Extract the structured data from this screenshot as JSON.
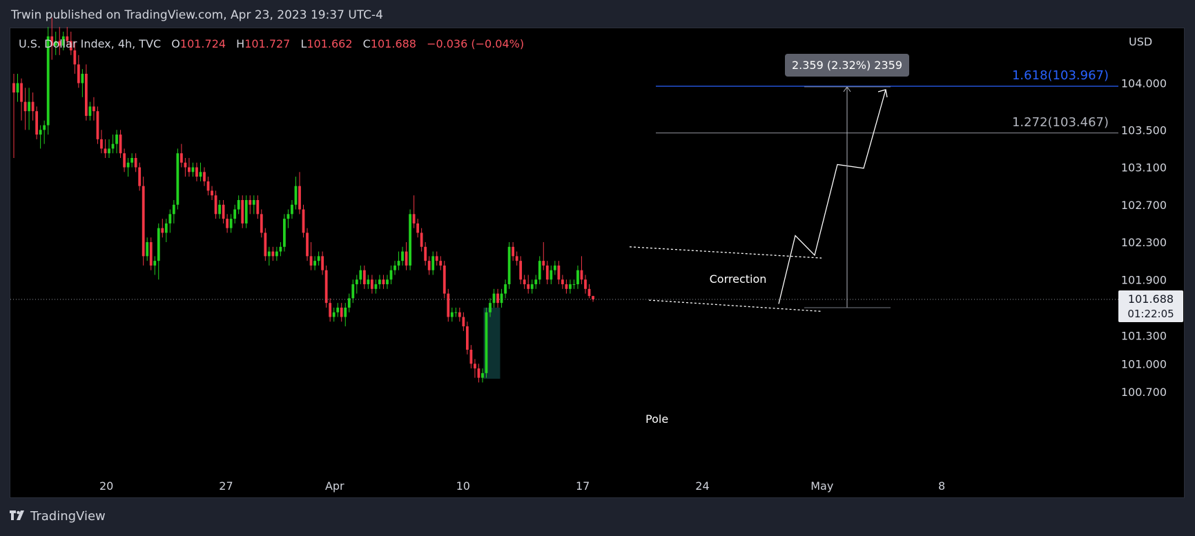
{
  "header": {
    "text": "Trwin published on TradingView.com, Apr 23, 2023 19:37 UTC-4"
  },
  "footer": {
    "logo_icon": "tradingview-logo-icon",
    "brand": "TradingView"
  },
  "legend": {
    "symbol": "U.S. Dollar Index, 4h, TVC",
    "open_label": "O",
    "open": "101.724",
    "high_label": "H",
    "high": "101.727",
    "low_label": "L",
    "low": "101.662",
    "close_label": "C",
    "close": "101.688",
    "change": "−0.036 (−0.04%)"
  },
  "price_axis": {
    "currency": "USD"
  },
  "current_price": {
    "value": "101.688",
    "countdown": "01:22:05"
  },
  "colors": {
    "up": "#22d11f",
    "down": "#f23645",
    "background": "#000000",
    "fib_618": "#2962ff",
    "fib_1272": "#9598a1"
  },
  "annotations": {
    "measure_label": "2.359 (2.32%) 2359",
    "fib_618_label": "1.618(103.967)",
    "fib_1272_label": "1.272(103.467)",
    "correction_label": "Correction",
    "pole_label": "Pole"
  },
  "chart_data": {
    "type": "candlestick",
    "title": "U.S. Dollar Index, 4h, TVC",
    "ylim": [
      100.62,
      104.55
    ],
    "y_ticks": [
      104.0,
      103.5,
      103.1,
      102.7,
      102.3,
      101.9,
      101.3,
      101.0,
      100.7
    ],
    "y_tick_labels": [
      "104.000",
      "103.500",
      "103.100",
      "102.700",
      "102.300",
      "101.900",
      "101.300",
      "101.000",
      "100.700"
    ],
    "x_ticks": [
      {
        "label": "20",
        "bar": 24.3
      },
      {
        "label": "27",
        "bar": 55.7
      },
      {
        "label": "Apr",
        "bar": 84.2
      },
      {
        "label": "10",
        "bar": 117.9
      },
      {
        "label": "17",
        "bar": 149.3
      },
      {
        "label": "24",
        "bar": 180.7
      },
      {
        "label": "May",
        "bar": 212.1
      },
      {
        "label": "8",
        "bar": 243.5
      }
    ],
    "grid": false,
    "candles": [
      [
        104.0,
        104.1,
        103.2,
        103.9
      ],
      [
        103.9,
        104.1,
        103.8,
        104.0
      ],
      [
        104.0,
        104.05,
        103.6,
        103.8
      ],
      [
        103.8,
        103.95,
        103.5,
        103.7
      ],
      [
        103.7,
        103.95,
        103.5,
        103.8
      ],
      [
        103.8,
        103.9,
        103.6,
        103.7
      ],
      [
        103.7,
        103.75,
        103.4,
        103.45
      ],
      [
        103.45,
        103.55,
        103.3,
        103.5
      ],
      [
        103.5,
        103.6,
        103.35,
        103.55
      ],
      [
        103.55,
        104.6,
        103.45,
        104.5
      ],
      [
        104.5,
        104.7,
        104.25,
        104.4
      ],
      [
        104.4,
        104.55,
        104.3,
        104.45
      ],
      [
        104.45,
        104.6,
        104.3,
        104.4
      ],
      [
        104.4,
        104.55,
        104.35,
        104.5
      ],
      [
        104.5,
        104.6,
        104.4,
        104.45
      ],
      [
        104.45,
        104.55,
        104.3,
        104.35
      ],
      [
        104.35,
        104.45,
        104.1,
        104.2
      ],
      [
        104.2,
        104.3,
        103.95,
        104.0
      ],
      [
        104.0,
        104.15,
        103.85,
        104.1
      ],
      [
        104.1,
        104.2,
        103.6,
        103.65
      ],
      [
        103.65,
        103.8,
        103.6,
        103.75
      ],
      [
        103.75,
        103.85,
        103.6,
        103.7
      ],
      [
        103.7,
        103.75,
        103.35,
        103.4
      ],
      [
        103.4,
        103.5,
        103.25,
        103.3
      ],
      [
        103.3,
        103.4,
        103.2,
        103.25
      ],
      [
        103.25,
        103.4,
        103.2,
        103.3
      ],
      [
        103.3,
        103.45,
        103.25,
        103.35
      ],
      [
        103.35,
        103.5,
        103.25,
        103.45
      ],
      [
        103.45,
        103.5,
        103.2,
        103.25
      ],
      [
        103.25,
        103.3,
        103.05,
        103.1
      ],
      [
        103.1,
        103.2,
        103.0,
        103.15
      ],
      [
        103.15,
        103.25,
        103.1,
        103.2
      ],
      [
        103.2,
        103.25,
        103.05,
        103.1
      ],
      [
        103.1,
        103.15,
        102.85,
        102.9
      ],
      [
        102.9,
        103.0,
        102.05,
        102.15
      ],
      [
        102.15,
        102.35,
        102.1,
        102.3
      ],
      [
        102.3,
        102.35,
        102.0,
        102.05
      ],
      [
        102.05,
        102.15,
        101.95,
        102.1
      ],
      [
        102.1,
        102.5,
        101.9,
        102.45
      ],
      [
        102.45,
        102.55,
        102.35,
        102.4
      ],
      [
        102.4,
        102.55,
        102.3,
        102.5
      ],
      [
        102.5,
        102.65,
        102.4,
        102.6
      ],
      [
        102.6,
        102.75,
        102.5,
        102.7
      ],
      [
        102.7,
        103.3,
        102.65,
        103.25
      ],
      [
        103.25,
        103.35,
        103.1,
        103.15
      ],
      [
        103.15,
        103.2,
        103.0,
        103.1
      ],
      [
        103.1,
        103.2,
        103.0,
        103.05
      ],
      [
        103.05,
        103.15,
        103.0,
        103.1
      ],
      [
        103.1,
        103.15,
        102.95,
        103.0
      ],
      [
        103.0,
        103.15,
        102.95,
        103.05
      ],
      [
        103.05,
        103.1,
        102.9,
        102.95
      ],
      [
        102.95,
        103.0,
        102.8,
        102.85
      ],
      [
        102.85,
        102.9,
        102.75,
        102.8
      ],
      [
        102.8,
        102.85,
        102.55,
        102.6
      ],
      [
        102.6,
        102.75,
        102.55,
        102.7
      ],
      [
        102.7,
        102.75,
        102.5,
        102.55
      ],
      [
        102.55,
        102.6,
        102.4,
        102.45
      ],
      [
        102.45,
        102.6,
        102.4,
        102.55
      ],
      [
        102.55,
        102.7,
        102.5,
        102.65
      ],
      [
        102.65,
        102.8,
        102.6,
        102.75
      ],
      [
        102.75,
        102.8,
        102.45,
        102.5
      ],
      [
        102.5,
        102.8,
        102.45,
        102.75
      ],
      [
        102.75,
        102.8,
        102.6,
        102.7
      ],
      [
        102.7,
        102.8,
        102.6,
        102.75
      ],
      [
        102.75,
        102.8,
        102.55,
        102.6
      ],
      [
        102.6,
        102.65,
        102.35,
        102.4
      ],
      [
        102.4,
        102.45,
        102.1,
        102.15
      ],
      [
        102.15,
        102.25,
        102.05,
        102.2
      ],
      [
        102.2,
        102.25,
        102.1,
        102.15
      ],
      [
        102.15,
        102.25,
        102.1,
        102.2
      ],
      [
        102.2,
        102.3,
        102.15,
        102.25
      ],
      [
        102.25,
        102.6,
        102.2,
        102.55
      ],
      [
        102.55,
        102.65,
        102.45,
        102.6
      ],
      [
        102.6,
        102.75,
        102.55,
        102.7
      ],
      [
        102.7,
        103.0,
        102.65,
        102.9
      ],
      [
        102.9,
        103.05,
        102.6,
        102.65
      ],
      [
        102.65,
        102.7,
        102.35,
        102.4
      ],
      [
        102.4,
        102.45,
        102.1,
        102.15
      ],
      [
        102.15,
        102.3,
        102.0,
        102.05
      ],
      [
        102.05,
        102.15,
        102.0,
        102.1
      ],
      [
        102.1,
        102.2,
        102.05,
        102.15
      ],
      [
        102.15,
        102.2,
        101.95,
        102.0
      ],
      [
        102.0,
        102.05,
        101.6,
        101.65
      ],
      [
        101.65,
        101.7,
        101.45,
        101.5
      ],
      [
        101.5,
        101.6,
        101.45,
        101.55
      ],
      [
        101.55,
        101.65,
        101.5,
        101.6
      ],
      [
        101.6,
        101.65,
        101.45,
        101.5
      ],
      [
        101.5,
        101.65,
        101.4,
        101.6
      ],
      [
        101.6,
        101.75,
        101.55,
        101.7
      ],
      [
        101.7,
        101.9,
        101.65,
        101.85
      ],
      [
        101.85,
        101.95,
        101.75,
        101.9
      ],
      [
        101.9,
        102.05,
        101.85,
        102.0
      ],
      [
        102.0,
        102.05,
        101.8,
        101.85
      ],
      [
        101.85,
        101.95,
        101.8,
        101.9
      ],
      [
        101.9,
        101.95,
        101.75,
        101.8
      ],
      [
        101.8,
        101.9,
        101.75,
        101.85
      ],
      [
        101.85,
        101.95,
        101.8,
        101.9
      ],
      [
        101.9,
        101.95,
        101.8,
        101.85
      ],
      [
        101.85,
        101.95,
        101.8,
        101.9
      ],
      [
        101.9,
        102.05,
        101.85,
        102.0
      ],
      [
        102.0,
        102.1,
        101.95,
        102.05
      ],
      [
        102.05,
        102.2,
        102.0,
        102.1
      ],
      [
        102.1,
        102.25,
        102.05,
        102.2
      ],
      [
        102.2,
        102.3,
        102.0,
        102.05
      ],
      [
        102.05,
        102.65,
        102.0,
        102.6
      ],
      [
        102.6,
        102.8,
        102.45,
        102.5
      ],
      [
        102.5,
        102.55,
        102.35,
        102.4
      ],
      [
        102.4,
        102.45,
        102.2,
        102.25
      ],
      [
        102.25,
        102.3,
        102.05,
        102.1
      ],
      [
        102.1,
        102.15,
        101.95,
        102.0
      ],
      [
        102.0,
        102.2,
        101.95,
        102.15
      ],
      [
        102.15,
        102.2,
        102.05,
        102.1
      ],
      [
        102.1,
        102.15,
        102.0,
        102.05
      ],
      [
        102.05,
        102.1,
        101.7,
        101.75
      ],
      [
        101.75,
        101.8,
        101.45,
        101.5
      ],
      [
        101.5,
        101.6,
        101.45,
        101.55
      ],
      [
        101.55,
        101.6,
        101.5,
        101.55
      ],
      [
        101.55,
        101.6,
        101.45,
        101.5
      ],
      [
        101.5,
        101.55,
        101.35,
        101.4
      ],
      [
        101.4,
        101.45,
        101.1,
        101.15
      ],
      [
        101.15,
        101.2,
        100.95,
        101.0
      ],
      [
        101.0,
        101.05,
        100.85,
        100.95
      ],
      [
        100.95,
        101.0,
        100.8,
        100.85
      ],
      [
        100.85,
        100.95,
        100.8,
        100.9
      ],
      [
        100.9,
        101.6,
        100.85,
        101.55
      ],
      [
        101.55,
        101.7,
        101.5,
        101.65
      ],
      [
        101.65,
        101.8,
        101.6,
        101.75
      ],
      [
        101.75,
        101.8,
        101.6,
        101.65
      ],
      [
        101.65,
        101.8,
        101.6,
        101.75
      ],
      [
        101.75,
        101.9,
        101.7,
        101.85
      ],
      [
        101.85,
        102.3,
        101.8,
        102.25
      ],
      [
        102.25,
        102.3,
        102.1,
        102.15
      ],
      [
        102.15,
        102.2,
        102.05,
        102.1
      ],
      [
        102.1,
        102.15,
        101.85,
        101.9
      ],
      [
        101.9,
        101.95,
        101.8,
        101.85
      ],
      [
        101.85,
        101.95,
        101.75,
        101.8
      ],
      [
        101.8,
        101.9,
        101.75,
        101.85
      ],
      [
        101.85,
        101.95,
        101.8,
        101.9
      ],
      [
        101.9,
        102.15,
        101.85,
        102.1
      ],
      [
        102.1,
        102.3,
        102.0,
        102.05
      ],
      [
        102.05,
        102.1,
        101.85,
        101.9
      ],
      [
        101.9,
        102.05,
        101.85,
        102.0
      ],
      [
        102.0,
        102.1,
        101.95,
        102.05
      ],
      [
        102.05,
        102.1,
        101.85,
        101.9
      ],
      [
        101.9,
        101.95,
        101.8,
        101.85
      ],
      [
        101.85,
        101.9,
        101.75,
        101.8
      ],
      [
        101.8,
        101.9,
        101.75,
        101.85
      ],
      [
        101.85,
        101.9,
        101.8,
        101.85
      ],
      [
        101.85,
        102.05,
        101.8,
        102.0
      ],
      [
        102.0,
        102.15,
        101.85,
        101.9
      ],
      [
        101.9,
        101.95,
        101.75,
        101.8
      ],
      [
        101.8,
        101.85,
        101.7,
        101.724
      ],
      [
        101.724,
        101.727,
        101.662,
        101.688
      ]
    ]
  }
}
